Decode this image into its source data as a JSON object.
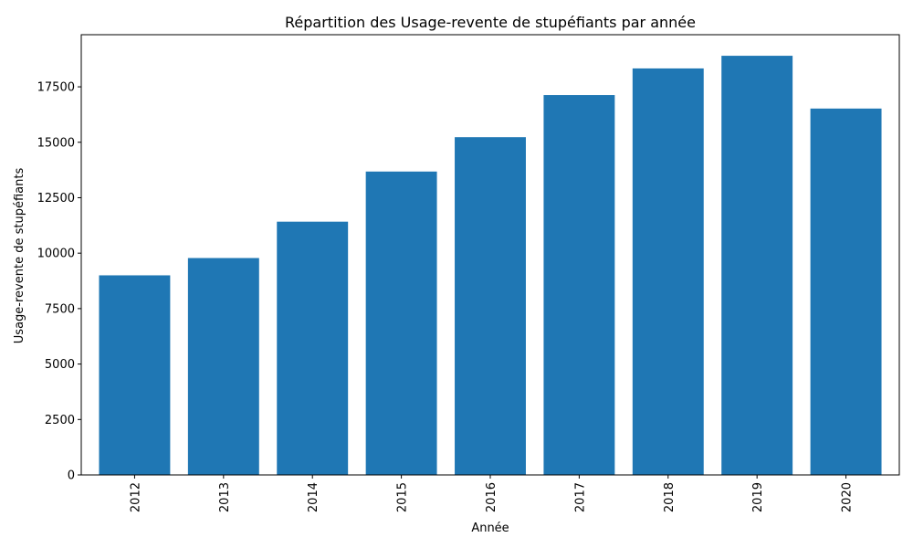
{
  "chart_data": {
    "type": "bar",
    "title": "Répartition des Usage-revente de stupéfiants par année",
    "xlabel": "Année",
    "ylabel": "Usage-revente de stupéfiants",
    "categories": [
      "2012",
      "2013",
      "2014",
      "2015",
      "2016",
      "2017",
      "2018",
      "2019",
      "2020"
    ],
    "values": [
      9000,
      9780,
      11420,
      13680,
      15230,
      17130,
      18330,
      18900,
      16520
    ],
    "ylim": [
      0,
      19850
    ],
    "yticks": [
      0,
      2500,
      5000,
      7500,
      10000,
      12500,
      15000,
      17500
    ],
    "bar_color": "#1f77b4",
    "grid": false,
    "legend": "none"
  }
}
